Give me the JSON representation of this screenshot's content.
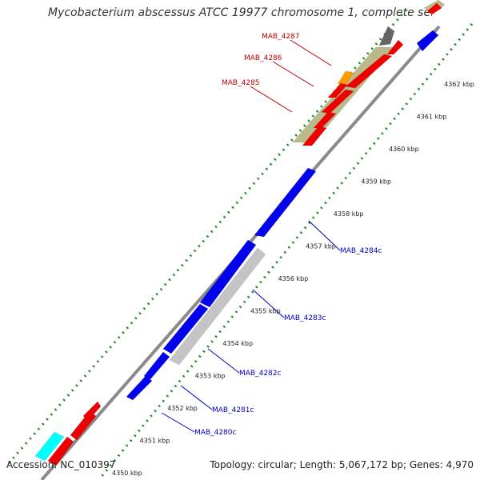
{
  "title": "Mycobacterium abscessus ATCC 19977 chromosome 1, complete se...",
  "footer": {
    "accession": "Accession: NC_010397",
    "summary": "Topology: circular; Length: 5,067,172 bp; Genes: 4,970"
  },
  "ticks": [
    "4350 kbp",
    "4351 kbp",
    "4352 kbp",
    "4353 kbp",
    "4354 kbp",
    "4355 kbp",
    "4356 kbp",
    "4357 kbp",
    "4358 kbp",
    "4359 kbp",
    "4360 kbp",
    "4361 kbp",
    "4362 kbp"
  ],
  "genes_forward": [
    {
      "label": "MAB_4285",
      "color": "#c00000"
    },
    {
      "label": "MAB_4286",
      "color": "#c00000"
    },
    {
      "label": "MAB_4287",
      "color": "#c00000"
    }
  ],
  "genes_reverse": [
    {
      "label": "MAB_4280c",
      "color": "#0000c0"
    },
    {
      "label": "MAB_4281c",
      "color": "#0000c0"
    },
    {
      "label": "MAB_4282c",
      "color": "#0000c0"
    },
    {
      "label": "MAB_4283c",
      "color": "#0000c0"
    },
    {
      "label": "MAB_4284c",
      "color": "#0000c0"
    }
  ],
  "colors": {
    "cds_forward": "#ee0000",
    "cds_reverse": "#0000ee",
    "feature_olive": "#b9b98a",
    "feature_gray": "#c4c4c4",
    "feature_orange": "#ff9900",
    "feature_dark": "#666666",
    "feature_cyan": "#00ffff",
    "tick_major": "#228822",
    "backbone": "#999999"
  }
}
